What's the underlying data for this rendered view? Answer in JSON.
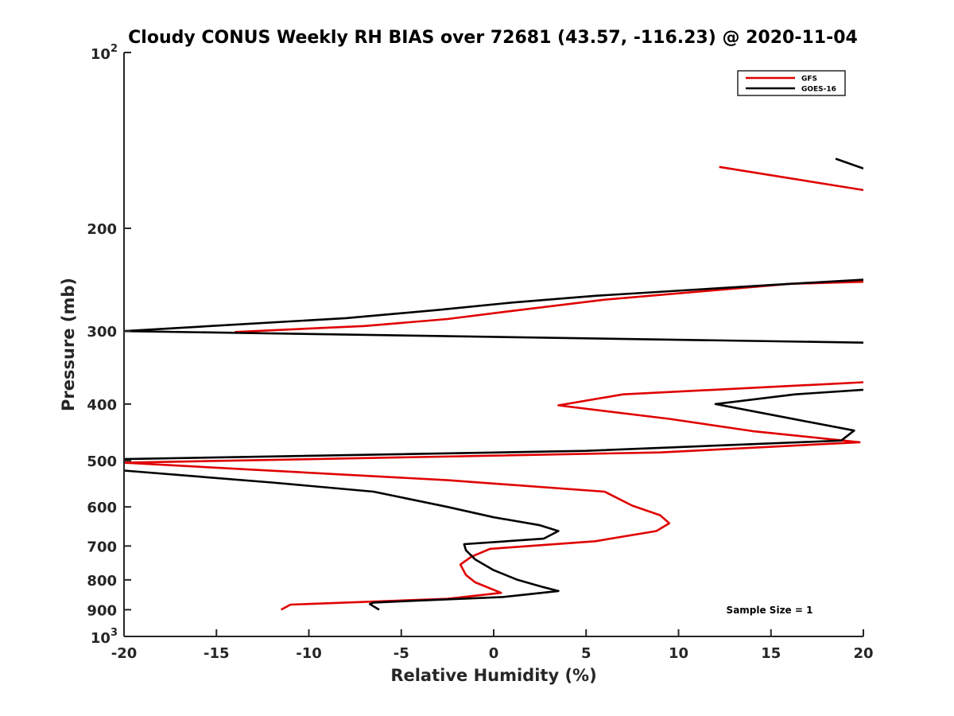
{
  "chart_data": {
    "type": "line",
    "title": "Cloudy CONUS Weekly RH BIAS over 72681 (43.57, -116.23) @ 2020-11-04",
    "xlabel": "Relative Humidity (%)",
    "ylabel": "Pressure (mb)",
    "xlim": [
      -20,
      20
    ],
    "ylim": [
      100,
      1000
    ],
    "y_scale": "log",
    "y_reversed": true,
    "grid": false,
    "legend_position": "top-right",
    "annotation": "Sample Size = 1",
    "x_ticks": [
      "-20",
      "-15",
      "-10",
      "-5",
      "0",
      "5",
      "10",
      "15",
      "20"
    ],
    "y_ticks": [
      {
        "value": 200,
        "label": "200"
      },
      {
        "value": 300,
        "label": "300"
      },
      {
        "value": 400,
        "label": "400"
      },
      {
        "value": 500,
        "label": "500"
      },
      {
        "value": 600,
        "label": "600"
      },
      {
        "value": 700,
        "label": "700"
      },
      {
        "value": 800,
        "label": "800"
      },
      {
        "value": 900,
        "label": "900"
      }
    ],
    "y_tick_top": {
      "base": "10",
      "exp": "2"
    },
    "y_tick_bottom": {
      "base": "10",
      "exp": "3"
    },
    "series": [
      {
        "name": "GFS",
        "color": "#e00000",
        "segments": [
          [
            [
              12.2,
              157
            ],
            [
              20.0,
              172
            ]
          ],
          [
            [
              20.0,
              247
            ],
            [
              16.0,
              249
            ],
            [
              6.0,
              265
            ],
            [
              1.0,
              277
            ],
            [
              -2.5,
              286
            ],
            [
              -7.0,
              294
            ],
            [
              -14.0,
              301
            ]
          ],
          [
            [
              20.0,
              367
            ],
            [
              7.0,
              385
            ],
            [
              3.5,
              402
            ],
            [
              9.5,
              424
            ],
            [
              14.0,
              445
            ],
            [
              19.8,
              465
            ],
            [
              9.0,
              484
            ],
            [
              -20.0,
              504
            ]
          ],
          [
            [
              -20.0,
              504
            ],
            [
              -2.5,
              540
            ],
            [
              6.0,
              565
            ],
            [
              7.5,
              597
            ],
            [
              9.0,
              620
            ],
            [
              9.5,
              640
            ],
            [
              8.8,
              660
            ],
            [
              5.5,
              687
            ],
            [
              -0.2,
              708
            ],
            [
              -1.2,
              730
            ],
            [
              -1.8,
              753
            ],
            [
              -1.5,
              785
            ],
            [
              -1.0,
              808
            ],
            [
              0.4,
              842
            ],
            [
              -2.5,
              862
            ],
            [
              -11.0,
              882
            ],
            [
              -11.5,
              900
            ]
          ]
        ]
      },
      {
        "name": "GOES-16",
        "color": "#000000",
        "segments": [
          [
            [
              18.5,
              152
            ],
            [
              20.0,
              158
            ]
          ],
          [
            [
              20.0,
              245
            ],
            [
              16.0,
              249
            ],
            [
              5.5,
              261
            ],
            [
              1.0,
              268
            ],
            [
              -3.0,
              276
            ],
            [
              -8.0,
              285
            ],
            [
              -20.0,
              300
            ]
          ],
          [
            [
              -20.0,
              300
            ],
            [
              20.0,
              314
            ]
          ],
          [
            [
              20.0,
              378
            ],
            [
              16.3,
              385
            ],
            [
              12.0,
              400
            ],
            [
              16.0,
              423
            ],
            [
              19.5,
              444
            ],
            [
              18.8,
              462
            ],
            [
              5.0,
              481
            ],
            [
              -20.0,
              497
            ]
          ],
          [
            [
              -20.0,
              520
            ],
            [
              -12.0,
              545
            ],
            [
              -6.5,
              565
            ],
            [
              -2.5,
              600
            ],
            [
              0.0,
              625
            ],
            [
              2.5,
              645
            ],
            [
              3.5,
              660
            ],
            [
              2.7,
              680
            ],
            [
              -1.6,
              695
            ],
            [
              -1.5,
              712
            ],
            [
              -1.0,
              738
            ],
            [
              0.0,
              770
            ],
            [
              1.3,
              800
            ],
            [
              2.6,
              822
            ],
            [
              3.5,
              836
            ],
            [
              0.5,
              856
            ],
            [
              -6.5,
              875
            ],
            [
              -6.7,
              880
            ],
            [
              -6.2,
              900
            ]
          ]
        ]
      }
    ]
  }
}
